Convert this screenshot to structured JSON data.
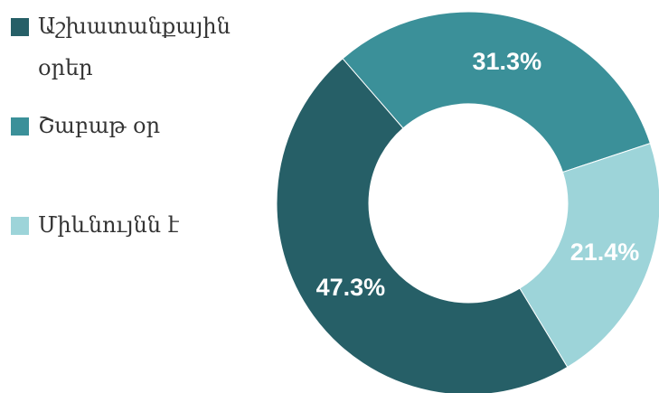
{
  "chart_data": {
    "type": "donut",
    "categories": [
      "Աշխատանքային օրեր",
      "Շաբաթ օր",
      "Միևնույնն է"
    ],
    "values": [
      47.3,
      31.3,
      21.4
    ],
    "value_labels": [
      "47.3%",
      "31.3%",
      "21.4%"
    ],
    "colors": [
      "#265f67",
      "#3b9099",
      "#9dd4d9"
    ],
    "legend": "left"
  }
}
